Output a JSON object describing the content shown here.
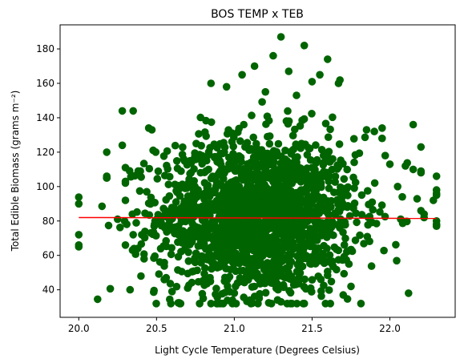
{
  "chart_data": {
    "type": "scatter",
    "title": "BOS TEMP x TEB",
    "xlabel": "Light Cycle Temperature (Degrees Celsius)",
    "ylabel": "Total Edible Biomass (grams m⁻²)",
    "xlim": [
      19.88,
      22.42
    ],
    "ylim": [
      24,
      194
    ],
    "xticks": [
      20.0,
      20.5,
      21.0,
      21.5,
      22.0
    ],
    "xtick_labels": [
      "20.0",
      "20.5",
      "21.0",
      "21.5",
      "22.0"
    ],
    "yticks": [
      40,
      60,
      80,
      100,
      120,
      140,
      160,
      180
    ],
    "ytick_labels": [
      "40",
      "60",
      "80",
      "100",
      "120",
      "140",
      "160",
      "180"
    ],
    "grid": false,
    "marker_color": "#006400",
    "trend_color": "#ff0000",
    "trend_line": {
      "x": [
        20.0,
        22.3
      ],
      "y": [
        82.0,
        81.5
      ]
    },
    "cloud": {
      "x_mean": 21.15,
      "x_sd": 0.32,
      "y_mean": 83,
      "y_sd": 23,
      "x_range": [
        20.0,
        22.3
      ],
      "y_range": [
        32,
        187
      ],
      "count": 1800
    },
    "series": [
      {
        "x": [
          20.0,
          20.0,
          20.0,
          20.0,
          20.18,
          20.18,
          20.18,
          20.18,
          20.25,
          20.28,
          20.28,
          20.3,
          20.3,
          20.3,
          20.3,
          20.3,
          20.33,
          20.35,
          20.35,
          20.38,
          20.4,
          20.42,
          20.45,
          20.47,
          21.3,
          21.45,
          21.25,
          21.6,
          21.13,
          21.35,
          21.55,
          21.05,
          21.67,
          20.95,
          21.2,
          21.4,
          20.85,
          21.5,
          20.7,
          21.0,
          21.3,
          20.6,
          21.75,
          20.55,
          20.8,
          21.1,
          21.7,
          21.9,
          21.95,
          21.95,
          21.85,
          21.97,
          22.0,
          22.05,
          22.08,
          22.1,
          22.12,
          22.15,
          22.15,
          22.2,
          22.2,
          22.2,
          22.2,
          22.22,
          22.22,
          22.3,
          22.3,
          22.3,
          22.3,
          22.3,
          22.3,
          22.3,
          22.28
        ],
        "y": [
          90,
          72,
          66,
          65,
          120,
          105,
          106,
          105,
          81,
          144,
          124,
          111,
          103,
          102,
          92,
          66,
          40,
          144,
          72,
          64,
          48,
          58,
          134,
          133,
          187,
          182,
          176,
          174,
          170,
          167,
          165,
          165,
          160,
          158,
          155,
          153,
          160,
          161,
          41,
          38,
          33,
          39,
          42,
          46,
          35,
          34,
          37,
          132,
          134,
          128,
          133,
          118,
          113,
          100,
          94,
          112,
          38,
          110,
          136,
          123,
          109,
          108,
          86,
          84,
          82,
          106,
          98,
          95,
          80,
          78,
          77,
          96,
          92
        ]
      }
    ]
  }
}
